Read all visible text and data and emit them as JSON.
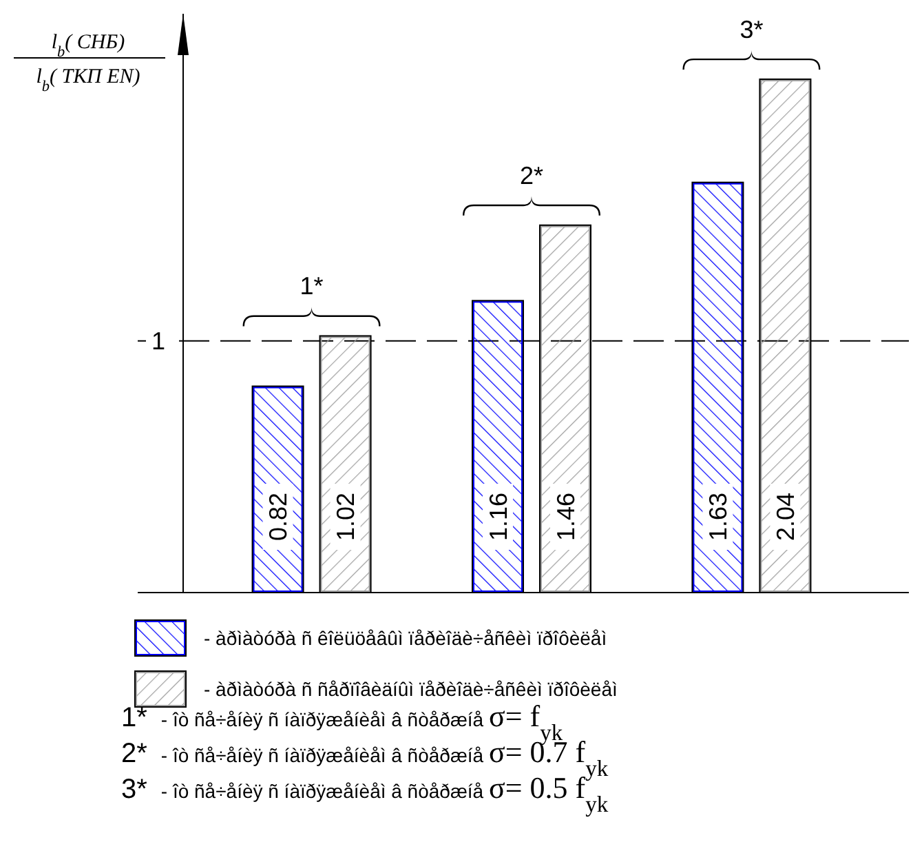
{
  "chart_data": {
    "type": "bar",
    "ylabel": "l$_{b}$( СНБ)\nl$_{b}$( ТКП EN)",
    "categories": [
      null,
      null,
      null
    ],
    "series": [
      {
        "name": "- àðìàòóðà ñ êîëüöåâûì ïåðèîäè÷åñêèì ïðîôèëåì",
        "color": "#0000ff",
        "values": [
          0.82,
          1.16,
          1.63
        ]
      },
      {
        "name": "- àðìàòóðà ñ ñåðïîâèäíûì ïåðèîäè÷åñêèì ïðîôèëåì",
        "color": "#a0a0a0",
        "values": [
          1.02,
          1.46,
          2.04
        ]
      }
    ],
    "ylim": [
      0,
      2.3
    ],
    "data_labels": true,
    "ref_lines": [
      {
        "axis": "y",
        "value": 1,
        "label": "1",
        "line_style": "dashed"
      }
    ],
    "legend": "bottom",
    "annotations": [
      "1*",
      "2*",
      "3*",
      "1* - îò ñå÷åíèÿ ñ íàïðÿæåíèåì â ñòåðæíå σ= f$_{yk}$",
      "2* - îò ñå÷åíèÿ ñ íàïðÿæåíèåì â ñòåðæíå σ= 0.7 f$_{yk}$",
      "3* - îò ñå÷åíèÿ ñ íàïðÿæåíèåì â ñòåðæíå σ= 0.5 f$_{yk}$"
    ]
  }
}
